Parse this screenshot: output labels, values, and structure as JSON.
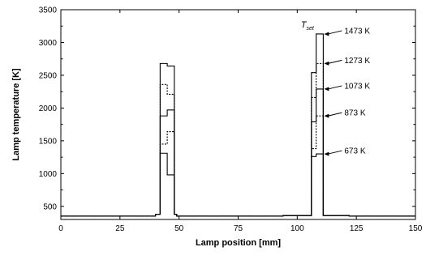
{
  "chart_data": {
    "type": "line",
    "title": "",
    "xlabel": "Lamp position [mm]",
    "ylabel": "Lamp temperature [K]",
    "xlim": [
      0,
      150
    ],
    "ylim": [
      300,
      3500
    ],
    "x_ticks": [
      0,
      25,
      50,
      75,
      100,
      125,
      150
    ],
    "y_ticks": [
      500,
      1000,
      1500,
      2000,
      2500,
      3000,
      3500
    ],
    "grid": false,
    "legend": "none",
    "set_temperature_symbol": "T",
    "set_temperature_subscript": "set",
    "series": [
      {
        "name": "1473 K",
        "style": "solid",
        "points": [
          [
            0,
            350
          ],
          [
            40,
            350
          ],
          [
            40,
            380
          ],
          [
            42,
            380
          ],
          [
            42,
            2680
          ],
          [
            45,
            2680
          ],
          [
            45,
            2640
          ],
          [
            48,
            2640
          ],
          [
            48,
            380
          ],
          [
            49,
            380
          ],
          [
            49,
            350
          ],
          [
            94,
            350
          ],
          [
            94,
            360
          ],
          [
            106,
            360
          ],
          [
            106,
            2540
          ],
          [
            108,
            2540
          ],
          [
            108,
            3130
          ],
          [
            111,
            3130
          ],
          [
            111,
            360
          ],
          [
            122,
            360
          ],
          [
            122,
            350
          ],
          [
            150,
            350
          ]
        ]
      },
      {
        "name": "1273 K",
        "style": "dotted",
        "points": [
          [
            0,
            350
          ],
          [
            40,
            350
          ],
          [
            40,
            380
          ],
          [
            42,
            380
          ],
          [
            42,
            2360
          ],
          [
            45,
            2360
          ],
          [
            45,
            2210
          ],
          [
            48,
            2210
          ],
          [
            48,
            380
          ],
          [
            49,
            380
          ],
          [
            49,
            350
          ],
          [
            94,
            350
          ],
          [
            94,
            360
          ],
          [
            106,
            360
          ],
          [
            106,
            2160
          ],
          [
            108,
            2160
          ],
          [
            108,
            2680
          ],
          [
            111,
            2680
          ],
          [
            111,
            360
          ],
          [
            122,
            360
          ],
          [
            122,
            350
          ],
          [
            150,
            350
          ]
        ]
      },
      {
        "name": "1073 K",
        "style": "solid",
        "points": [
          [
            0,
            350
          ],
          [
            40,
            350
          ],
          [
            40,
            380
          ],
          [
            42,
            380
          ],
          [
            42,
            1880
          ],
          [
            45,
            1880
          ],
          [
            45,
            1970
          ],
          [
            48,
            1970
          ],
          [
            48,
            380
          ],
          [
            49,
            380
          ],
          [
            49,
            350
          ],
          [
            94,
            350
          ],
          [
            94,
            360
          ],
          [
            106,
            360
          ],
          [
            106,
            1790
          ],
          [
            108,
            1790
          ],
          [
            108,
            2290
          ],
          [
            111,
            2290
          ],
          [
            111,
            360
          ],
          [
            122,
            360
          ],
          [
            122,
            350
          ],
          [
            150,
            350
          ]
        ]
      },
      {
        "name": "873 K",
        "style": "dotted",
        "points": [
          [
            0,
            350
          ],
          [
            40,
            350
          ],
          [
            40,
            380
          ],
          [
            42,
            380
          ],
          [
            42,
            1450
          ],
          [
            45,
            1450
          ],
          [
            45,
            1640
          ],
          [
            48,
            1640
          ],
          [
            48,
            380
          ],
          [
            49,
            380
          ],
          [
            49,
            350
          ],
          [
            94,
            350
          ],
          [
            94,
            360
          ],
          [
            106,
            360
          ],
          [
            106,
            1380
          ],
          [
            108,
            1380
          ],
          [
            108,
            1880
          ],
          [
            111,
            1880
          ],
          [
            111,
            360
          ],
          [
            122,
            360
          ],
          [
            122,
            350
          ],
          [
            150,
            350
          ]
        ]
      },
      {
        "name": "673 K",
        "style": "solid",
        "points": [
          [
            0,
            350
          ],
          [
            40,
            350
          ],
          [
            40,
            380
          ],
          [
            42,
            380
          ],
          [
            42,
            1310
          ],
          [
            45,
            1310
          ],
          [
            45,
            980
          ],
          [
            48,
            980
          ],
          [
            48,
            380
          ],
          [
            49,
            380
          ],
          [
            49,
            350
          ],
          [
            94,
            350
          ],
          [
            94,
            360
          ],
          [
            106,
            360
          ],
          [
            106,
            1260
          ],
          [
            108,
            1260
          ],
          [
            108,
            1300
          ],
          [
            111,
            1300
          ],
          [
            111,
            360
          ],
          [
            122,
            360
          ],
          [
            122,
            350
          ],
          [
            150,
            350
          ]
        ]
      }
    ],
    "annotations": [
      {
        "text": "1473 K",
        "target": [
          111,
          3130
        ]
      },
      {
        "text": "1273 K",
        "target": [
          111,
          2680
        ]
      },
      {
        "text": "1073 K",
        "target": [
          111,
          2290
        ]
      },
      {
        "text": "873 K",
        "target": [
          111,
          1880
        ]
      },
      {
        "text": "673 K",
        "target": [
          111,
          1300
        ]
      }
    ]
  }
}
